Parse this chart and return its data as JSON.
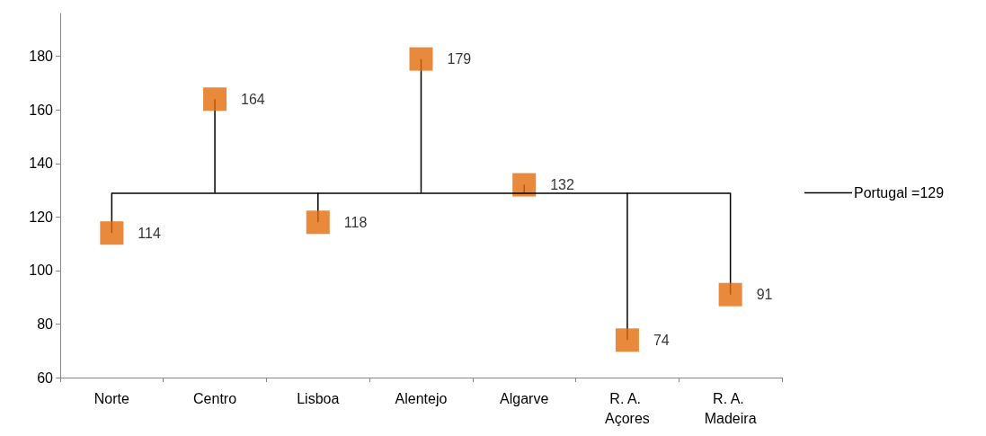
{
  "chart_data": {
    "type": "lollipop",
    "categories": [
      "Norte",
      "Centro",
      "Lisboa",
      "Alentejo",
      "Algarve",
      "R. A. Açores",
      "R. A. Madeira"
    ],
    "values": [
      114,
      164,
      118,
      179,
      132,
      74,
      91
    ],
    "color": "#e46c0a",
    "errors": [
      [
        114,
        129
      ],
      [
        129,
        164
      ],
      [
        118,
        129
      ],
      [
        129,
        179
      ],
      [
        129,
        132
      ],
      [
        74,
        129
      ],
      [
        91,
        129
      ]
    ],
    "ylim": [
      60,
      196
    ],
    "yticks": [
      60,
      80,
      100,
      120,
      140,
      160,
      180
    ],
    "ref_lines": [
      {
        "axis": "y",
        "value": 129,
        "label": "Portugal =129",
        "color": "#000000"
      }
    ],
    "marker": "square",
    "data_labels": true,
    "grid": false
  }
}
